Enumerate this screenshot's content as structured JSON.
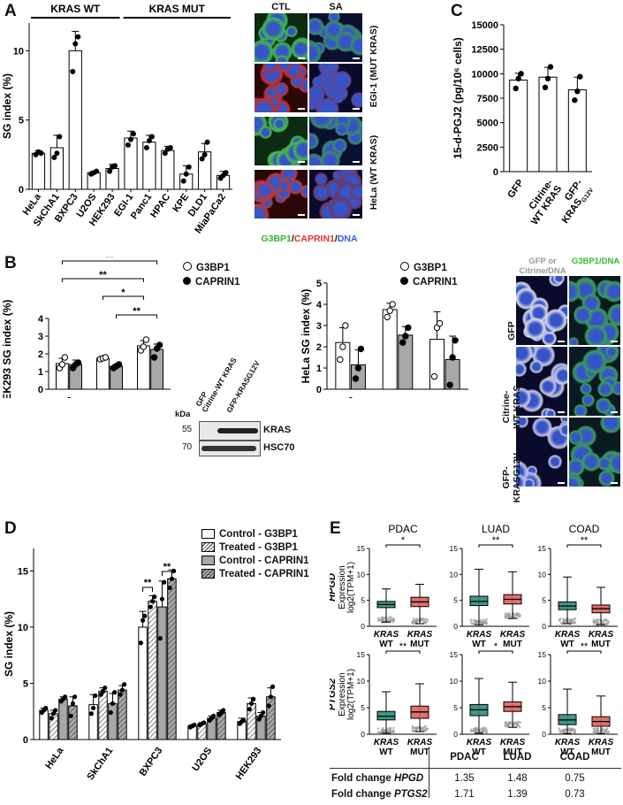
{
  "panels": {
    "A": "A",
    "B": "B",
    "C": "C",
    "D": "D",
    "E": "E"
  },
  "chart_data": [
    {
      "id": "A",
      "type": "bar",
      "ylabel": "SG index (%)",
      "ylim": [
        0,
        12
      ],
      "yticks": [
        0,
        5,
        10
      ],
      "groups": [
        {
          "label": "KRAS WT",
          "from": 0,
          "to": 4
        },
        {
          "label": "KRAS MUT",
          "from": 5,
          "to": 10
        }
      ],
      "categories": [
        "HeLa",
        "SkChA1",
        "BXPC3",
        "U2OS",
        "HEK293",
        "EGI-1",
        "Panc1",
        "HPAC",
        "KPE",
        "DLD1",
        "MiaPaCa2"
      ],
      "values": [
        2.6,
        3.0,
        10.0,
        1.2,
        1.5,
        3.7,
        3.4,
        2.8,
        1.1,
        2.7,
        1.0
      ],
      "errors": [
        0.2,
        0.9,
        1.4,
        0.1,
        0.3,
        0.5,
        0.5,
        0.3,
        0.6,
        0.6,
        0.3
      ],
      "points": [
        [
          2.5,
          2.7,
          2.6
        ],
        [
          2.3,
          2.6,
          3.8
        ],
        [
          8.5,
          10.5,
          11.0
        ],
        [
          1.1,
          1.2,
          1.3
        ],
        [
          1.3,
          1.6,
          1.7
        ],
        [
          3.2,
          3.6,
          4.0
        ],
        [
          3.0,
          3.5,
          3.8
        ],
        [
          2.6,
          2.9,
          3.0
        ],
        [
          0.6,
          1.1,
          1.6
        ],
        [
          2.2,
          2.5,
          3.4
        ],
        [
          0.8,
          1.0,
          1.2
        ]
      ]
    },
    {
      "id": "B-HEK293",
      "type": "bar",
      "ylabel": "HEK293 SG index (%)",
      "ylim": [
        0,
        4
      ],
      "yticks": [
        0,
        1,
        2,
        3,
        4
      ],
      "categories": [
        "GFP",
        "Citrine-\nWT KRAS",
        "GFP-\nKRASG12V"
      ],
      "series": [
        {
          "name": "G3BP1",
          "values": [
            1.45,
            1.75,
            2.45
          ],
          "errors": [
            0.3,
            0.1,
            0.3
          ],
          "points": [
            [
              1.2,
              1.4,
              1.8
            ],
            [
              1.7,
              1.75,
              1.8
            ],
            [
              2.2,
              2.4,
              2.8
            ]
          ]
        },
        {
          "name": "CAPRIN1",
          "values": [
            1.4,
            1.3,
            2.25
          ],
          "errors": [
            0.25,
            0.1,
            0.3
          ],
          "points": [
            [
              1.2,
              1.4,
              1.5
            ],
            [
              1.2,
              1.3,
              1.4
            ],
            [
              1.8,
              2.3,
              2.5
            ]
          ]
        }
      ],
      "significance": [
        {
          "label": "**",
          "from": [
            0,
            0
          ],
          "to": [
            2,
            1
          ]
        },
        {
          "label": "**",
          "from": [
            0,
            0
          ],
          "to": [
            2,
            0
          ]
        },
        {
          "label": "*",
          "from": [
            1,
            0
          ],
          "to": [
            2,
            0
          ]
        },
        {
          "label": "**",
          "from": [
            1,
            1
          ],
          "to": [
            2,
            1
          ]
        }
      ]
    },
    {
      "id": "B-HeLa",
      "type": "bar",
      "ylabel": "HeLa SG index (%)",
      "ylim": [
        0,
        5
      ],
      "yticks": [
        0,
        1,
        2,
        3,
        4,
        5
      ],
      "categories": [
        "GFP",
        "Citrine-\nWT KRAS",
        "GFP-\nKRASG12V"
      ],
      "series": [
        {
          "name": "G3BP1",
          "values": [
            2.2,
            3.75,
            2.35
          ],
          "errors": [
            0.7,
            0.3,
            1.3
          ],
          "points": [
            [
              1.4,
              2.0,
              3.0
            ],
            [
              3.4,
              3.7,
              4.0
            ],
            [
              0.6,
              2.9,
              3.1
            ]
          ]
        },
        {
          "name": "CAPRIN1",
          "values": [
            1.15,
            2.55,
            1.4
          ],
          "errors": [
            0.7,
            0.4,
            1.1
          ],
          "points": [
            [
              0.5,
              1.0,
              1.9
            ],
            [
              2.2,
              2.5,
              2.9
            ],
            [
              0.2,
              1.5,
              2.3
            ]
          ]
        }
      ]
    },
    {
      "id": "C",
      "type": "bar",
      "ylabel": "15-d-PGJ2 (pg/10⁶ cells)",
      "ylim": [
        0,
        15000
      ],
      "yticks": [
        0,
        2500,
        5000,
        7500,
        10000,
        12500,
        15000
      ],
      "categories": [
        "GFP",
        "Citrine-\nWT KRAS",
        "GFP-\nKRASG12V"
      ],
      "values": [
        9350,
        9650,
        8350
      ],
      "errors": [
        700,
        1000,
        1300
      ],
      "points": [
        [
          8500,
          9500,
          10000
        ],
        [
          8600,
          9500,
          10700
        ],
        [
          7300,
          8200,
          9700
        ]
      ]
    },
    {
      "id": "D",
      "type": "bar",
      "ylabel": "SG index (%)",
      "ylim": [
        0,
        17
      ],
      "yticks": [
        0,
        5,
        10,
        15
      ],
      "categories": [
        "HeLa",
        "SkChA1",
        "BXPC3",
        "U2OS",
        "HEK293"
      ],
      "series": [
        {
          "name": "Control - G3BP1",
          "values": [
            2.6,
            3.1,
            10.0,
            1.2,
            1.6
          ],
          "errors": [
            0.2,
            0.9,
            1.4,
            0.1,
            0.3
          ],
          "points": [
            [
              2.4,
              2.6,
              2.8
            ],
            [
              2.3,
              2.8,
              3.9
            ],
            [
              8.6,
              10.6,
              11.0
            ],
            [
              1.1,
              1.2,
              1.3
            ],
            [
              1.4,
              1.6,
              1.7
            ]
          ]
        },
        {
          "name": "Treated - G3BP1",
          "values": [
            2.3,
            4.3,
            12.3,
            1.4,
            3.2
          ],
          "errors": [
            0.3,
            0.3,
            0.5,
            0.1,
            0.5
          ],
          "points": [
            [
              1.9,
              2.3,
              2.6
            ],
            [
              4.0,
              4.3,
              4.6
            ],
            [
              11.8,
              12.3,
              12.7
            ],
            [
              1.3,
              1.4,
              1.5
            ],
            [
              2.7,
              3.2,
              3.6
            ]
          ]
        },
        {
          "name": "Control - CAPRIN1",
          "values": [
            3.6,
            3.2,
            11.8,
            1.9,
            2.1
          ],
          "errors": [
            0.2,
            0.9,
            2.3,
            0.2,
            0.3
          ],
          "points": [
            [
              3.4,
              3.6,
              3.8
            ],
            [
              2.4,
              3.2,
              4.2
            ],
            [
              9.0,
              12.5,
              14.0
            ],
            [
              1.7,
              1.9,
              2.1
            ],
            [
              1.8,
              2.1,
              2.4
            ]
          ]
        },
        {
          "name": "Treated - CAPRIN1",
          "values": [
            3.0,
            4.4,
            14.3,
            2.4,
            3.8
          ],
          "errors": [
            0.8,
            0.4,
            0.8,
            0.2,
            0.8
          ],
          "points": [
            [
              2.1,
              3.2,
              3.8
            ],
            [
              4.0,
              4.4,
              4.9
            ],
            [
              13.5,
              14.3,
              15.0
            ],
            [
              2.2,
              2.4,
              2.6
            ],
            [
              3.0,
              3.8,
              4.7
            ]
          ]
        }
      ],
      "significance": [
        {
          "label": "**",
          "category": 2,
          "a": 0,
          "b": 1
        },
        {
          "label": "**",
          "category": 2,
          "a": 2,
          "b": 3
        }
      ]
    }
  ],
  "micro_A": {
    "cols": [
      "CTL",
      "SA"
    ],
    "rows": [
      {
        "label": "EGI-1 (MUT KRAS)"
      },
      {
        "label": "HeLa (WT KRAS)"
      }
    ],
    "legend": [
      {
        "text": "G3BP1",
        "color": "#3bd13b"
      },
      {
        "text": "/",
        "color": "#222"
      },
      {
        "text": "CAPRIN1",
        "color": "#e0322a"
      },
      {
        "text": "/",
        "color": "#222"
      },
      {
        "text": "DNA",
        "color": "#4060e0"
      }
    ]
  },
  "western": {
    "kda": "kDa",
    "lanes": [
      "GFP",
      "Citrine-WT KRAS",
      "GFP-KRASG12V"
    ],
    "bands": [
      {
        "mw": "55",
        "label": "KRAS"
      },
      {
        "mw": "70",
        "label": "HSC70"
      }
    ]
  },
  "micro_B": {
    "col1": "GFP or Citrine/DNA",
    "col2": "G3BP1/DNA",
    "rows": [
      "GFP",
      "Citrine-\nWT KRAS",
      "GFP-\nKRASG12V"
    ]
  },
  "legend_B": [
    "G3BP1",
    "CAPRIN1"
  ],
  "legend_D": [
    "Control - G3BP1",
    "Treated - G3BP1",
    "Control - CAPRIN1",
    "Treated - CAPRIN1"
  ],
  "panel_E": {
    "cohorts": [
      "PDAC",
      "LUAD",
      "COAD"
    ],
    "genes": [
      {
        "gene": "HPGD",
        "ylabel": "Expression",
        "ylabel2": "log2(TPM+1)",
        "sig": [
          "*",
          "**",
          "**"
        ]
      },
      {
        "gene": "PTGS2",
        "ylabel": "Expression",
        "ylabel2": "log2(TPM+1)",
        "sig": [
          "**",
          "*",
          "**"
        ]
      }
    ],
    "xlabels": [
      {
        "top": "KRAS",
        "bottom": "WT"
      },
      {
        "top": "KRAS",
        "bottom": "MUT"
      }
    ],
    "yticks": [
      0,
      5,
      10,
      15
    ],
    "colors": {
      "wt": "#2e8b7a",
      "mut": "#e0605a"
    },
    "table": {
      "headers": [
        "",
        "PDAC",
        "LUAD",
        "COAD"
      ],
      "rows": [
        {
          "label": "Fold change",
          "gene": "HPGD",
          "vals": [
            "1.35",
            "1.48",
            "0.75"
          ]
        },
        {
          "label": "Fold change",
          "gene": "PTGS2",
          "vals": [
            "1.71",
            "1.39",
            "0.73"
          ]
        }
      ]
    },
    "box_data": [
      [
        {
          "wt": {
            "q1": 3.6,
            "med": 4.2,
            "q3": 4.8,
            "lo": 0.8,
            "hi": 7.2
          },
          "mut": {
            "q1": 3.8,
            "med": 4.7,
            "q3": 5.6,
            "lo": 0.5,
            "hi": 8.1
          }
        },
        {
          "wt": {
            "q1": 4.0,
            "med": 4.8,
            "q3": 5.8,
            "lo": 0.3,
            "hi": 11.0
          },
          "mut": {
            "q1": 4.3,
            "med": 5.2,
            "q3": 6.1,
            "lo": 1.5,
            "hi": 10.5
          }
        },
        {
          "wt": {
            "q1": 3.2,
            "med": 3.9,
            "q3": 4.7,
            "lo": 0.5,
            "hi": 9.5
          },
          "mut": {
            "q1": 2.6,
            "med": 3.4,
            "q3": 4.1,
            "lo": 0.3,
            "hi": 7.5
          }
        }
      ],
      [
        {
          "wt": {
            "q1": 2.7,
            "med": 3.4,
            "q3": 4.3,
            "lo": 0.2,
            "hi": 8.0
          },
          "mut": {
            "q1": 3.0,
            "med": 4.2,
            "q3": 5.3,
            "lo": 0.5,
            "hi": 9.5
          }
        },
        {
          "wt": {
            "q1": 3.5,
            "med": 4.6,
            "q3": 5.6,
            "lo": 0.2,
            "hi": 10.5
          },
          "mut": {
            "q1": 4.3,
            "med": 5.2,
            "q3": 6.1,
            "lo": 1.3,
            "hi": 9.8
          }
        },
        {
          "wt": {
            "q1": 1.8,
            "med": 2.7,
            "q3": 3.7,
            "lo": 0.1,
            "hi": 8.5
          },
          "mut": {
            "q1": 1.5,
            "med": 2.4,
            "q3": 3.3,
            "lo": 0.1,
            "hi": 7.2
          }
        }
      ]
    ]
  }
}
